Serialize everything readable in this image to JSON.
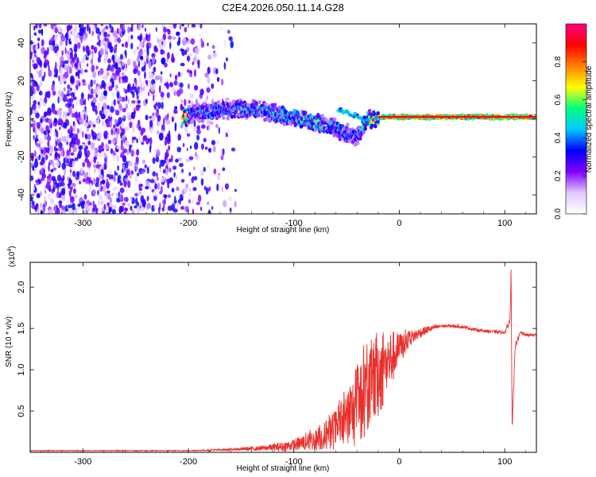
{
  "title": "C2E4.2026.050.11.14.G28",
  "chart_data": [
    {
      "type": "heatmap",
      "xlabel": "Height of straight line (km)",
      "ylabel": "Frequency (Hz)",
      "xlim": [
        -350,
        130
      ],
      "ylim": [
        -50,
        50
      ],
      "xticks": [
        -300,
        -200,
        -100,
        0,
        100
      ],
      "yticks": [
        -40,
        -20,
        0,
        20,
        40
      ],
      "colorbar": {
        "label": "Normalized spectral amplitude",
        "range": [
          0,
          1
        ],
        "ticks": [
          "0.0",
          "0.2",
          "0.4",
          "0.6",
          "0.8"
        ],
        "tick_values": [
          0,
          0.2,
          0.4,
          0.6,
          0.8
        ],
        "colors": [
          "#ffffff",
          "#e0c8ff",
          "#8000ff",
          "#0000ff",
          "#00c8ff",
          "#00ff80",
          "#ffff00",
          "#ff8000",
          "#ff0000",
          "#ff0080"
        ]
      },
      "noise_region_end_km": -165,
      "signal_track": [
        {
          "x": -200,
          "f": 2,
          "amp": 0.35
        },
        {
          "x": -180,
          "f": 4,
          "amp": 0.45
        },
        {
          "x": -160,
          "f": 5,
          "amp": 0.4
        },
        {
          "x": -140,
          "f": 5,
          "amp": 0.45
        },
        {
          "x": -120,
          "f": 3,
          "amp": 0.5
        },
        {
          "x": -100,
          "f": 1,
          "amp": 0.5
        },
        {
          "x": -80,
          "f": -2,
          "amp": 0.55
        },
        {
          "x": -60,
          "f": -5,
          "amp": 0.45
        },
        {
          "x": -40,
          "f": -10,
          "amp": 0.35
        },
        {
          "x": -50,
          "f": 5,
          "amp": 0.45
        },
        {
          "x": -30,
          "f": 0,
          "amp": 0.7
        },
        {
          "x": -10,
          "f": 1,
          "amp": 0.85
        },
        {
          "x": 10,
          "f": 1,
          "amp": 0.9
        },
        {
          "x": 40,
          "f": 1,
          "amp": 0.95
        },
        {
          "x": 70,
          "f": 1,
          "amp": 0.95
        },
        {
          "x": 100,
          "f": 1,
          "amp": 0.9
        },
        {
          "x": 130,
          "f": 1,
          "amp": 0.9
        }
      ]
    },
    {
      "type": "line",
      "xlabel": "Height of straight line (km)",
      "ylabel": "SNR (10 * v/v)",
      "y_scale_label": "(x10",
      "y_scale_exp": "4",
      "y_scale_close": ")",
      "xlim": [
        -350,
        130
      ],
      "ylim": [
        0,
        2.3
      ],
      "xticks": [
        -300,
        -200,
        -100,
        0,
        100
      ],
      "yticks": [
        "0.5",
        "1.0",
        "1.5",
        "2.0"
      ],
      "ytick_values": [
        0.5,
        1.0,
        1.5,
        2.0
      ],
      "color": "#e8302c",
      "series": [
        {
          "name": "SNR",
          "x": [
            -350,
            -300,
            -250,
            -200,
            -170,
            -150,
            -130,
            -110,
            -100,
            -90,
            -80,
            -70,
            -60,
            -50,
            -40,
            -30,
            -20,
            -10,
            0,
            10,
            20,
            30,
            40,
            50,
            60,
            70,
            80,
            90,
            100,
            105,
            106,
            107,
            110,
            115,
            120,
            130
          ],
          "y": [
            0.02,
            0.02,
            0.02,
            0.02,
            0.03,
            0.04,
            0.05,
            0.07,
            0.09,
            0.12,
            0.15,
            0.2,
            0.28,
            0.4,
            0.55,
            0.75,
            0.95,
            1.1,
            1.25,
            1.38,
            1.45,
            1.5,
            1.53,
            1.53,
            1.52,
            1.49,
            1.47,
            1.46,
            1.45,
            1.6,
            2.25,
            0.3,
            1.3,
            1.45,
            1.42,
            1.42
          ],
          "noise_amp": [
            0.005,
            0.005,
            0.005,
            0.005,
            0.01,
            0.02,
            0.03,
            0.06,
            0.07,
            0.1,
            0.13,
            0.18,
            0.25,
            0.35,
            0.5,
            0.55,
            0.55,
            0.4,
            0.2,
            0.1,
            0.06,
            0.04,
            0.02,
            0.02,
            0.02,
            0.02,
            0.02,
            0.02,
            0.02,
            0.05,
            0.05,
            0.05,
            0.04,
            0.02,
            0.02,
            0.02
          ]
        }
      ]
    }
  ]
}
